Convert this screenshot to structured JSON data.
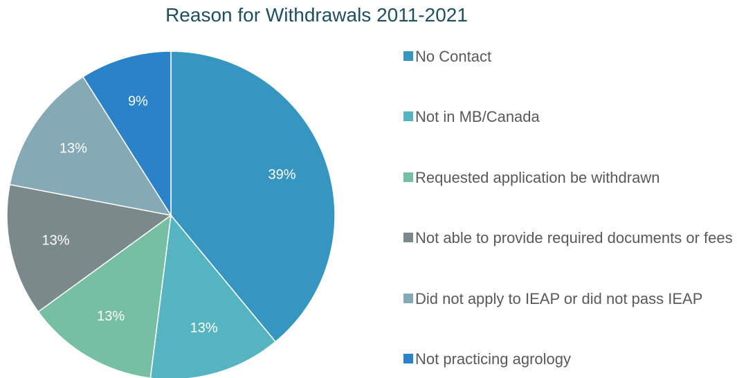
{
  "chart_data": {
    "type": "pie",
    "title": "Reason for Withdrawals 2011-2021",
    "categories": [
      "No Contact",
      "Not in MB/Canada",
      "Requested application be withdrawn",
      "Not able to provide required documents or fees",
      "Did not apply to IEAP or did not pass IEAP",
      "Not practicing agrology"
    ],
    "values": [
      39,
      13,
      13,
      13,
      13,
      9
    ],
    "value_labels": [
      "39%",
      "13%",
      "13%",
      "13%",
      "13%",
      "9%"
    ],
    "colors": [
      "#3796bf",
      "#56b4c0",
      "#76bfa3",
      "#7a8a8a",
      "#86aab5",
      "#2a82c8"
    ],
    "legend": "right"
  }
}
